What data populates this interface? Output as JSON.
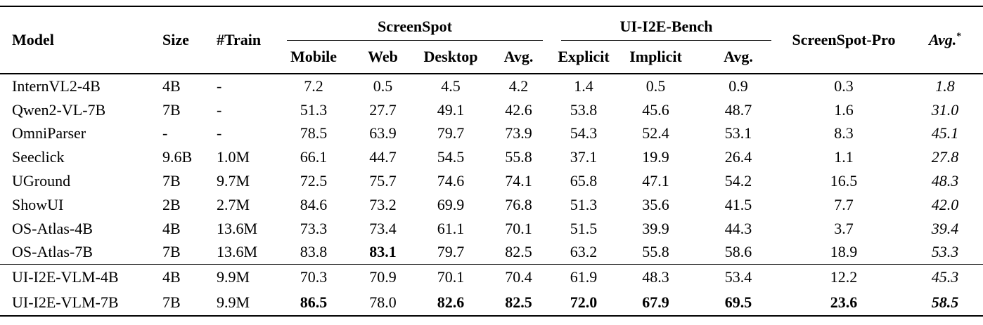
{
  "table": {
    "groups": {
      "screenspot": "ScreenSpot",
      "ui_i2e": "UI-I2E-Bench"
    },
    "header": {
      "model": "Model",
      "size": "Size",
      "train": "#Train",
      "mobile": "Mobile",
      "web": "Web",
      "desktop": "Desktop",
      "avg": "Avg.",
      "explicit": "Explicit",
      "implicit": "Implicit",
      "avg2": "Avg.",
      "sspro": "ScreenSpot-Pro",
      "avg_star": "Avg.",
      "avg_star_sup": "*"
    },
    "value_columns": [
      "ScreenSpot Mobile",
      "ScreenSpot Web",
      "ScreenSpot Desktop",
      "ScreenSpot Avg.",
      "UI-I2E-Bench Explicit",
      "UI-I2E-Bench Implicit",
      "UI-I2E-Bench Avg.",
      "ScreenSpot-Pro",
      "Avg.*"
    ],
    "rows": [
      {
        "model": "InternVL2-4B",
        "size": "4B",
        "train": "-",
        "values": [
          "7.2",
          "0.5",
          "4.5",
          "4.2",
          "1.4",
          "0.5",
          "0.9",
          "0.3",
          "1.8"
        ],
        "bold": []
      },
      {
        "model": "Qwen2-VL-7B",
        "size": "7B",
        "train": "-",
        "values": [
          "51.3",
          "27.7",
          "49.1",
          "42.6",
          "53.8",
          "45.6",
          "48.7",
          "1.6",
          "31.0"
        ],
        "bold": []
      },
      {
        "model": "OmniParser",
        "size": "-",
        "train": "-",
        "values": [
          "78.5",
          "63.9",
          "79.7",
          "73.9",
          "54.3",
          "52.4",
          "53.1",
          "8.3",
          "45.1"
        ],
        "bold": []
      },
      {
        "model": "Seeclick",
        "size": "9.6B",
        "train": "1.0M",
        "values": [
          "66.1",
          "44.7",
          "54.5",
          "55.8",
          "37.1",
          "19.9",
          "26.4",
          "1.1",
          "27.8"
        ],
        "bold": []
      },
      {
        "model": "UGround",
        "size": "7B",
        "train": "9.7M",
        "values": [
          "72.5",
          "75.7",
          "74.6",
          "74.1",
          "65.8",
          "47.1",
          "54.2",
          "16.5",
          "48.3"
        ],
        "bold": []
      },
      {
        "model": "ShowUI",
        "size": "2B",
        "train": "2.7M",
        "values": [
          "84.6",
          "73.2",
          "69.9",
          "76.8",
          "51.3",
          "35.6",
          "41.5",
          "7.7",
          "42.0"
        ],
        "bold": []
      },
      {
        "model": "OS-Atlas-4B",
        "size": "4B",
        "train": "13.6M",
        "values": [
          "73.3",
          "73.4",
          "61.1",
          "70.1",
          "51.5",
          "39.9",
          "44.3",
          "3.7",
          "39.4"
        ],
        "bold": []
      },
      {
        "model": "OS-Atlas-7B",
        "size": "7B",
        "train": "13.6M",
        "values": [
          "83.8",
          "83.1",
          "79.7",
          "82.5",
          "63.2",
          "55.8",
          "58.6",
          "18.9",
          "53.3"
        ],
        "bold": [
          1
        ]
      },
      {
        "model": "UI-I2E-VLM-4B",
        "size": "4B",
        "train": "9.9M",
        "values": [
          "70.3",
          "70.9",
          "70.1",
          "70.4",
          "61.9",
          "48.3",
          "53.4",
          "12.2",
          "45.3"
        ],
        "bold": [],
        "sep": true
      },
      {
        "model": "UI-I2E-VLM-7B",
        "size": "7B",
        "train": "9.9M",
        "values": [
          "86.5",
          "78.0",
          "82.6",
          "82.5",
          "72.0",
          "67.9",
          "69.5",
          "23.6",
          "58.5"
        ],
        "bold": [
          0,
          2,
          3,
          4,
          5,
          6,
          7,
          8
        ]
      }
    ]
  }
}
